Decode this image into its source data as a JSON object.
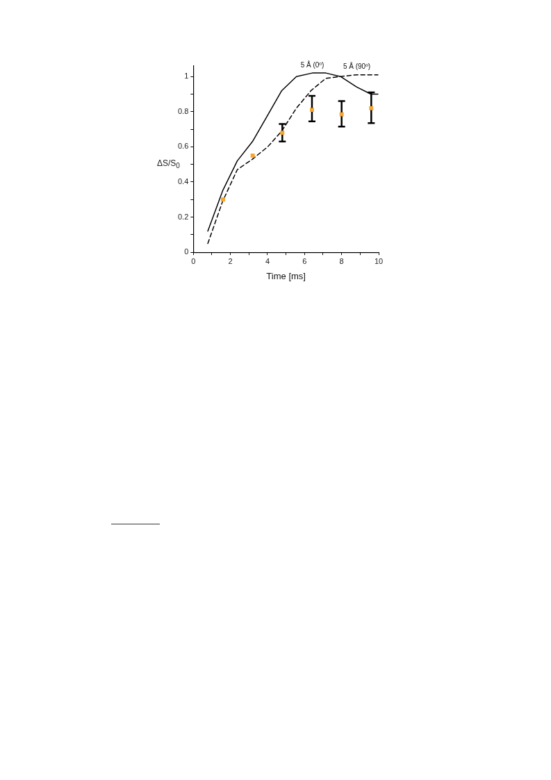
{
  "chart_data": {
    "type": "line",
    "xlabel": "Time [ms]",
    "ylabel": "ΔS/S$_{0}$",
    "xlim": [
      0,
      10
    ],
    "ylim": [
      0,
      1.06
    ],
    "xticks": [
      0,
      {
        "value": 1,
        "label": null
      },
      2,
      {
        "value": 3,
        "label": null
      },
      4,
      {
        "value": 5,
        "label": null
      },
      6,
      {
        "value": 7,
        "label": null
      },
      8,
      {
        "value": 9,
        "label": null
      },
      10
    ],
    "yticks": [
      0,
      {
        "value": 0.1,
        "label": null
      },
      0.2,
      {
        "value": 0.3,
        "label": null
      },
      0.4,
      {
        "value": 0.5,
        "label": null
      },
      0.6,
      {
        "value": 0.7,
        "label": null
      },
      0.8,
      {
        "value": 0.9,
        "label": null
      },
      1
    ],
    "grid": false,
    "legend": false,
    "series": [
      {
        "name": "5 Å (0º)",
        "line_style": "solid",
        "color": "#000000",
        "x": [
          0.78,
          1.58,
          2.37,
          3.19,
          4.01,
          4.77,
          5.56,
          6.42,
          7.15,
          7.94,
          8.82,
          9.58,
          9.96
        ],
        "values": [
          0.12,
          0.35,
          0.52,
          0.63,
          0.78,
          0.92,
          1.0,
          1.02,
          1.02,
          1.0,
          0.94,
          0.9,
          0.9
        ]
      },
      {
        "name": "5 Å (90º)",
        "line_style": "dashed",
        "color": "#000000",
        "x": [
          0.78,
          1.58,
          2.37,
          3.19,
          4.01,
          4.77,
          5.56,
          6.35,
          7.15,
          7.94,
          8.82,
          9.96
        ],
        "values": [
          0.05,
          0.29,
          0.47,
          0.53,
          0.6,
          0.69,
          0.82,
          0.92,
          0.99,
          1.0,
          1.01,
          1.01
        ]
      },
      {
        "type": "scatter",
        "marker": "square",
        "color": "#f5a733",
        "x": [
          1.6,
          3.2,
          4.8,
          6.4,
          8.0,
          9.6
        ],
        "values": [
          0.3,
          0.55,
          0.68,
          0.81,
          0.785,
          0.82
        ],
        "errors": [
          null,
          null,
          [
            0.63,
            0.73
          ],
          [
            0.745,
            0.89
          ],
          [
            0.715,
            0.86
          ],
          [
            0.735,
            0.91
          ]
        ]
      }
    ]
  }
}
